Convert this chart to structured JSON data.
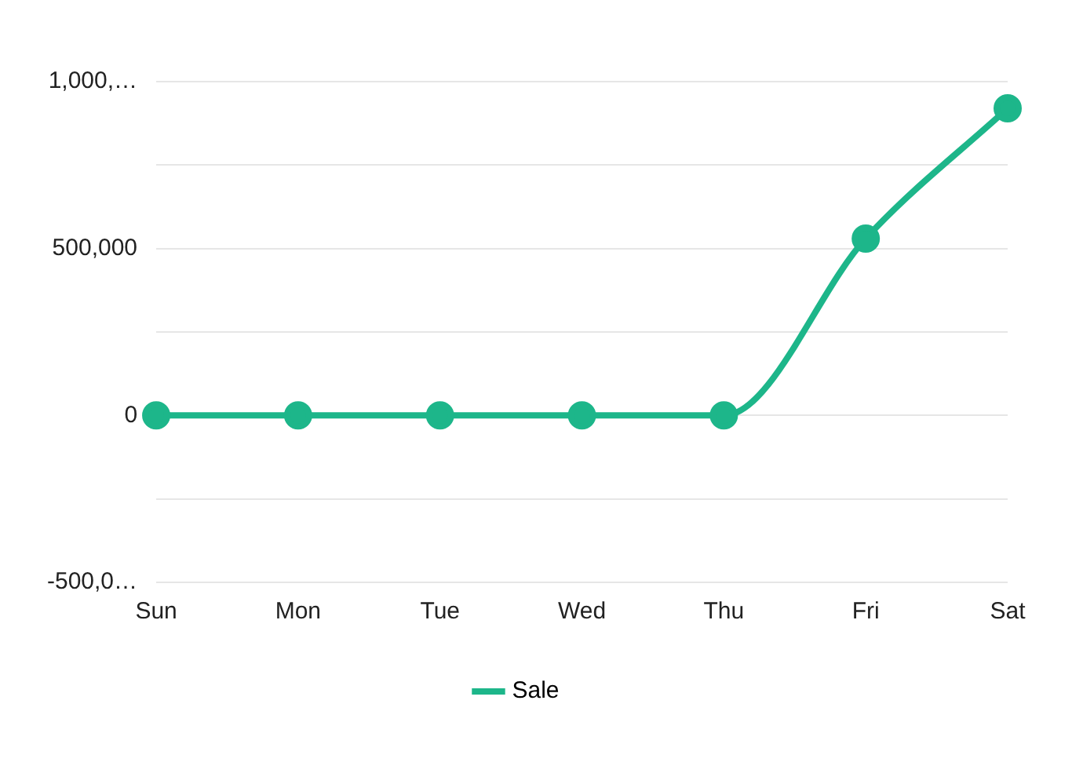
{
  "chart_data": {
    "type": "line",
    "categories": [
      "Sun",
      "Mon",
      "Tue",
      "Wed",
      "Thu",
      "Fri",
      "Sat"
    ],
    "series": [
      {
        "name": "Sale",
        "color": "#1db68a",
        "values": [
          0,
          0,
          0,
          0,
          0,
          530000,
          920000
        ]
      }
    ],
    "ylim": [
      -500000,
      1000000
    ],
    "yticks": [
      {
        "value": -500000,
        "label": "-500,0…"
      },
      {
        "value": -250000,
        "label": null
      },
      0,
      {
        "value": 250000,
        "label": null
      },
      {
        "value": 500000,
        "label": "500,000"
      },
      {
        "value": 750000,
        "label": null
      },
      {
        "value": 1000000,
        "label": "1,000,…"
      }
    ],
    "grid": "y",
    "legend": "bottom",
    "marker": "circle",
    "line_style": "solid"
  }
}
